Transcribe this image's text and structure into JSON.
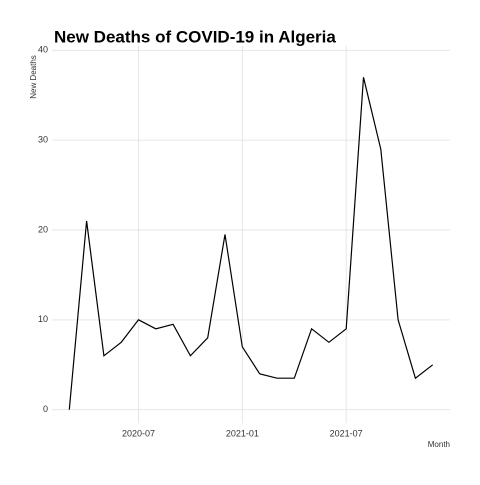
{
  "chart_data": {
    "type": "line",
    "title": "New Deaths of COVID-19 in Algeria",
    "y_label": "New Deaths",
    "x_label": "Month",
    "x": [
      "2020-03",
      "2020-04",
      "2020-05",
      "2020-06",
      "2020-07",
      "2020-08",
      "2020-09",
      "2020-10",
      "2020-11",
      "2020-12",
      "2021-01",
      "2021-02",
      "2021-03",
      "2021-04",
      "2021-05",
      "2021-06",
      "2021-07",
      "2021-08",
      "2021-09",
      "2021-10",
      "2021-11",
      "2021-12"
    ],
    "series": [
      {
        "name": "New Deaths",
        "color": "#000000",
        "values": [
          0,
          21,
          6,
          7.5,
          10,
          9,
          9.5,
          6,
          8,
          19.5,
          7,
          4,
          3.5,
          3.5,
          9,
          7.5,
          9,
          37,
          29,
          10,
          3.5,
          5
        ]
      }
    ],
    "xlim": [
      "2020-02",
      "2022-01"
    ],
    "xticks": [
      "2020-07",
      "2021-01",
      "2021-07"
    ],
    "ylim": [
      -1.5,
      40.5
    ],
    "yticks": [
      0,
      10,
      20,
      30,
      40
    ],
    "grid": true,
    "legend": false
  }
}
